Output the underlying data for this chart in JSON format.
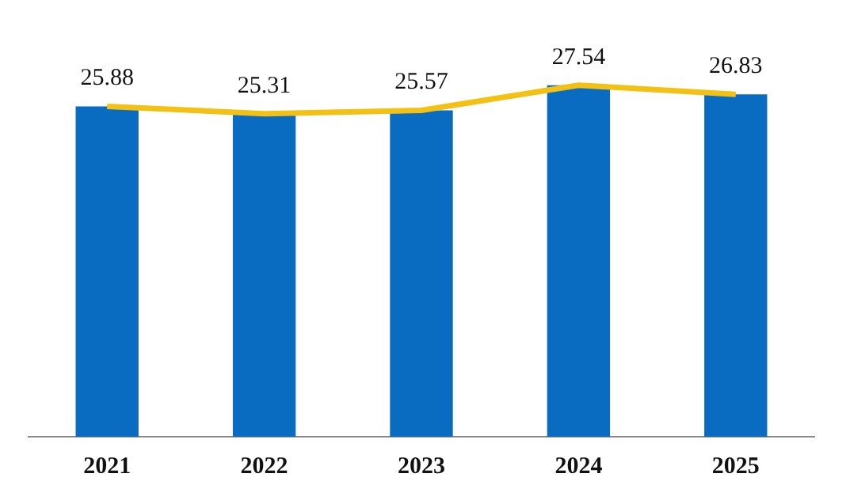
{
  "chart_data": {
    "type": "bar",
    "categories": [
      "2021",
      "2022",
      "2023",
      "2024",
      "2025"
    ],
    "series": [
      {
        "color": "#0a6cc0",
        "values": [
          25.88,
          25.31,
          25.57,
          27.54,
          26.83
        ]
      },
      {
        "type": "line",
        "color": "#f2c114",
        "values": [
          25.88,
          25.31,
          25.57,
          27.54,
          26.83
        ],
        "value_labels": [
          "25.88",
          "25.31",
          "25.57",
          "27.54",
          "26.83"
        ]
      }
    ],
    "grid": false,
    "legend": false,
    "marker": "none"
  }
}
